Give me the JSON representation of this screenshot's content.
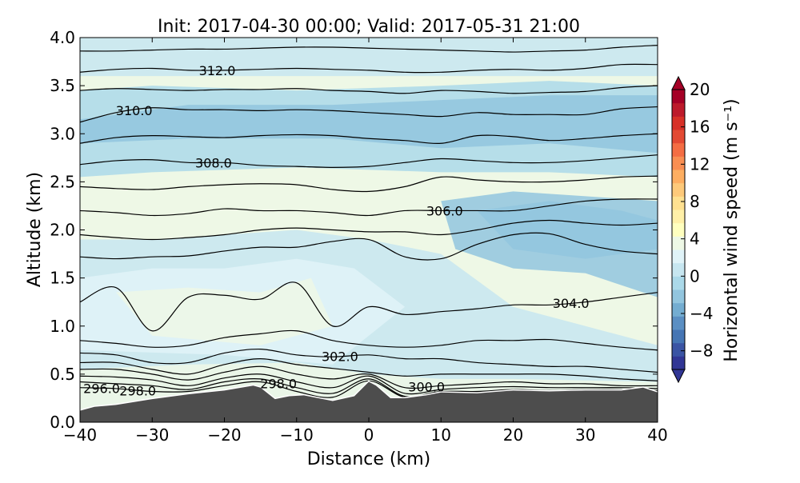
{
  "chart_data": {
    "type": "contour",
    "title": "Init: 2017-04-30 00:00; Valid: 2017-05-31 21:00",
    "xlabel": "Distance (km)",
    "ylabel": "Altitude (km)",
    "xlim": [
      -40,
      40
    ],
    "ylim": [
      0,
      4
    ],
    "xticks": [
      "−40",
      "−30",
      "−20",
      "−10",
      "0",
      "10",
      "20",
      "30",
      "40"
    ],
    "xtick_values": [
      -40,
      -30,
      -20,
      -10,
      0,
      10,
      20,
      30,
      40
    ],
    "yticks": [
      "0.0",
      "0.5",
      "1.0",
      "1.5",
      "2.0",
      "2.5",
      "3.0",
      "3.5",
      "4.0"
    ],
    "ytick_values": [
      0,
      0.5,
      1,
      1.5,
      2,
      2.5,
      3,
      3.5,
      4
    ],
    "colorbar": {
      "label": "Horizontal wind speed (m s⁻¹)",
      "range": [
        -10,
        20
      ],
      "ticks": [
        "−8",
        "−4",
        "0",
        "4",
        "8",
        "12",
        "16",
        "20"
      ],
      "tick_values": [
        -8,
        -4,
        0,
        4,
        8,
        12,
        16,
        20
      ],
      "colors": [
        "#313695",
        "#3a54a4",
        "#4575b4",
        "#5b8fc3",
        "#74add1",
        "#92c5de",
        "#abd9e9",
        "#c7e6f0",
        "#e0f3f8",
        "#eef8e6",
        "#ffffbf",
        "#fff0a8",
        "#fee090",
        "#fdc97a",
        "#fdae61",
        "#f98e52",
        "#f46d43",
        "#e34a33",
        "#d73027",
        "#bd1a2b",
        "#a50026"
      ]
    },
    "terrain": {
      "x": [
        -40,
        -38,
        -35,
        -30,
        -25,
        -20,
        -16,
        -15,
        -13,
        -11,
        -9,
        -5,
        -2,
        0,
        1,
        3,
        5,
        8,
        10,
        15,
        20,
        25,
        30,
        35,
        38,
        40
      ],
      "altitude": [
        0.12,
        0.16,
        0.18,
        0.24,
        0.29,
        0.33,
        0.38,
        0.36,
        0.24,
        0.27,
        0.28,
        0.22,
        0.27,
        0.42,
        0.38,
        0.25,
        0.25,
        0.28,
        0.31,
        0.3,
        0.33,
        0.32,
        0.33,
        0.33,
        0.36,
        0.31
      ]
    },
    "contour_x": [
      -40,
      -35,
      -30,
      -25,
      -20,
      -15,
      -10,
      -5,
      0,
      5,
      10,
      15,
      20,
      25,
      30,
      35,
      40
    ],
    "contours": [
      {
        "altitude": [
          3.86,
          3.86,
          3.87,
          3.88,
          3.88,
          3.89,
          3.9,
          3.9,
          3.89,
          3.88,
          3.87,
          3.86,
          3.85,
          3.86,
          3.87,
          3.9,
          3.92
        ]
      },
      {
        "altitude": [
          3.64,
          3.67,
          3.68,
          3.66,
          3.66,
          3.67,
          3.68,
          3.67,
          3.66,
          3.64,
          3.64,
          3.66,
          3.67,
          3.66,
          3.68,
          3.72,
          3.72
        ],
        "label": "312.0",
        "label_x": -21
      },
      {
        "altitude": [
          3.45,
          3.47,
          3.46,
          3.45,
          3.46,
          3.46,
          3.47,
          3.45,
          3.44,
          3.42,
          3.45,
          3.44,
          3.42,
          3.43,
          3.44,
          3.48,
          3.5
        ]
      },
      {
        "altitude": [
          3.12,
          3.22,
          3.27,
          3.25,
          3.25,
          3.24,
          3.25,
          3.24,
          3.22,
          3.2,
          3.18,
          3.22,
          3.2,
          3.2,
          3.2,
          3.26,
          3.28
        ],
        "label": "310.0",
        "label_x": -32.5
      },
      {
        "altitude": [
          2.9,
          2.96,
          2.98,
          2.97,
          2.96,
          2.98,
          2.99,
          2.98,
          2.95,
          2.93,
          2.9,
          2.98,
          2.97,
          2.93,
          2.95,
          2.98,
          3.0
        ]
      },
      {
        "altitude": [
          2.68,
          2.72,
          2.73,
          2.7,
          2.7,
          2.67,
          2.66,
          2.65,
          2.66,
          2.7,
          2.74,
          2.72,
          2.7,
          2.7,
          2.72,
          2.75,
          2.78
        ],
        "label": "308.0",
        "label_x": -21.5
      },
      {
        "altitude": [
          2.45,
          2.43,
          2.42,
          2.45,
          2.47,
          2.48,
          2.47,
          2.42,
          2.4,
          2.45,
          2.55,
          2.52,
          2.5,
          2.5,
          2.52,
          2.55,
          2.56
        ]
      },
      {
        "altitude": [
          2.2,
          2.18,
          2.15,
          2.17,
          2.22,
          2.2,
          2.2,
          2.18,
          2.15,
          2.2,
          2.2,
          2.2,
          2.2,
          2.25,
          2.3,
          2.32,
          2.32
        ],
        "label": "306.0",
        "label_x": 10.5
      },
      {
        "altitude": [
          1.95,
          1.92,
          1.9,
          1.92,
          1.95,
          2.0,
          2.02,
          2.0,
          1.98,
          1.98,
          1.95,
          2.0,
          2.07,
          2.1,
          2.07,
          2.05,
          2.07
        ]
      },
      {
        "altitude": [
          1.72,
          1.7,
          1.72,
          1.73,
          1.78,
          1.82,
          1.82,
          1.88,
          1.9,
          1.72,
          1.7,
          1.85,
          1.95,
          1.96,
          1.85,
          1.78,
          1.75
        ]
      },
      {
        "altitude": [
          1.25,
          1.4,
          0.95,
          1.3,
          1.32,
          1.28,
          1.45,
          1.0,
          1.2,
          1.12,
          1.15,
          1.18,
          1.22,
          1.22,
          1.25,
          1.3,
          1.35
        ],
        "label": "304.0",
        "label_x": 28
      },
      {
        "altitude": [
          0.85,
          0.82,
          0.78,
          0.8,
          0.88,
          0.92,
          0.95,
          0.85,
          0.8,
          0.78,
          0.8,
          0.85,
          0.85,
          0.86,
          0.82,
          0.78,
          0.75
        ]
      },
      {
        "altitude": [
          0.72,
          0.7,
          0.62,
          0.62,
          0.72,
          0.76,
          0.7,
          0.68,
          0.7,
          0.66,
          0.66,
          0.62,
          0.6,
          0.58,
          0.58,
          0.55,
          0.52
        ],
        "label": "302.0",
        "label_x": -4
      },
      {
        "altitude": [
          0.62,
          0.62,
          0.55,
          0.5,
          0.6,
          0.66,
          0.6,
          0.56,
          0.52,
          0.48,
          0.5,
          0.5,
          0.5,
          0.5,
          0.48,
          0.45,
          0.43
        ]
      },
      {
        "altitude": [
          0.55,
          0.55,
          0.5,
          0.44,
          0.52,
          0.58,
          0.5,
          0.45,
          0.5,
          0.36,
          0.38,
          0.4,
          0.42,
          0.4,
          0.4,
          0.38,
          0.38
        ],
        "label": "300.0",
        "label_x": 8
      },
      {
        "altitude": [
          0.48,
          0.47,
          0.44,
          0.38,
          0.46,
          0.5,
          0.42,
          0.36,
          0.48,
          0.3,
          0.34,
          0.36,
          0.37,
          0.36,
          0.36,
          0.36,
          0.35
        ]
      },
      {
        "altitude": [
          0.42,
          0.4,
          0.38,
          0.34,
          0.42,
          0.45,
          0.36,
          0.3,
          0.45,
          0.27,
          0.32,
          0.32,
          0.34,
          0.33,
          0.34,
          0.34,
          0.33
        ],
        "label": "298.0",
        "label_x": -12.5
      },
      {
        "altitude": [
          0.36,
          0.35,
          0.32,
          0.32,
          0.38,
          0.42,
          0.32,
          0.26,
          0.43,
          0.26,
          0.31,
          0.31,
          0.33,
          0.32,
          0.33,
          0.33,
          0.32
        ],
        "label": "296.0",
        "label_x": -37
      }
    ],
    "extra_labels": [
      {
        "text": "298.0",
        "x": -32,
        "altitude": 0.33
      }
    ],
    "shaded_regions": [
      {
        "value": 1,
        "x": [
          -40,
          40,
          40,
          -40
        ],
        "altitude": [
          4,
          4,
          3.6,
          3.6
        ]
      },
      {
        "value": -1,
        "x": [
          -40,
          -30,
          -10,
          10,
          25,
          40,
          40,
          25,
          10,
          -10,
          -30,
          -40
        ],
        "altitude": [
          3.45,
          3.5,
          3.45,
          3.5,
          3.55,
          3.5,
          2.55,
          2.6,
          2.6,
          2.65,
          2.6,
          2.55
        ]
      },
      {
        "value": -2,
        "x": [
          -40,
          -25,
          -5,
          10,
          25,
          40,
          40,
          25,
          10,
          -5,
          -25,
          -40
        ],
        "altitude": [
          3.15,
          3.3,
          3.3,
          3.35,
          3.4,
          3.4,
          2.8,
          2.9,
          2.85,
          2.95,
          2.95,
          2.9
        ]
      },
      {
        "value": -2,
        "x": [
          10,
          20,
          30,
          40,
          40,
          30,
          20,
          12
        ],
        "altitude": [
          2.3,
          2.4,
          2.35,
          2.3,
          1.3,
          1.55,
          1.6,
          1.8
        ]
      },
      {
        "value": -3,
        "x": [
          15,
          25,
          35,
          40,
          40,
          30,
          20
        ],
        "altitude": [
          2.2,
          2.3,
          2.2,
          2.1,
          1.8,
          1.7,
          1.8
        ]
      },
      {
        "value": 1,
        "x": [
          -40,
          -30,
          -20,
          -10,
          0,
          10,
          20,
          30,
          40,
          40,
          -40
        ],
        "altitude": [
          1.9,
          1.9,
          1.95,
          2.0,
          1.9,
          1.75,
          1.2,
          1.0,
          0.8,
          0,
          0
        ]
      },
      {
        "value": 2,
        "x": [
          -40,
          -30,
          -20,
          -10,
          -2,
          5,
          -5,
          -20,
          -40
        ],
        "altitude": [
          1.5,
          1.6,
          1.6,
          1.7,
          1.6,
          1.2,
          0.6,
          0.7,
          0.75
        ]
      },
      {
        "value": 3,
        "x": [
          -35,
          -25,
          -15,
          -8,
          -5,
          -15,
          -30
        ],
        "altitude": [
          1.35,
          1.4,
          1.35,
          1.5,
          1.0,
          0.8,
          0.9
        ]
      },
      {
        "value": 3,
        "x": [
          -40,
          -25,
          -10,
          0,
          10,
          20,
          40,
          40,
          -40
        ],
        "altitude": [
          0.55,
          0.6,
          0.62,
          0.5,
          0.45,
          0.45,
          0.42,
          0,
          0
        ]
      }
    ]
  }
}
